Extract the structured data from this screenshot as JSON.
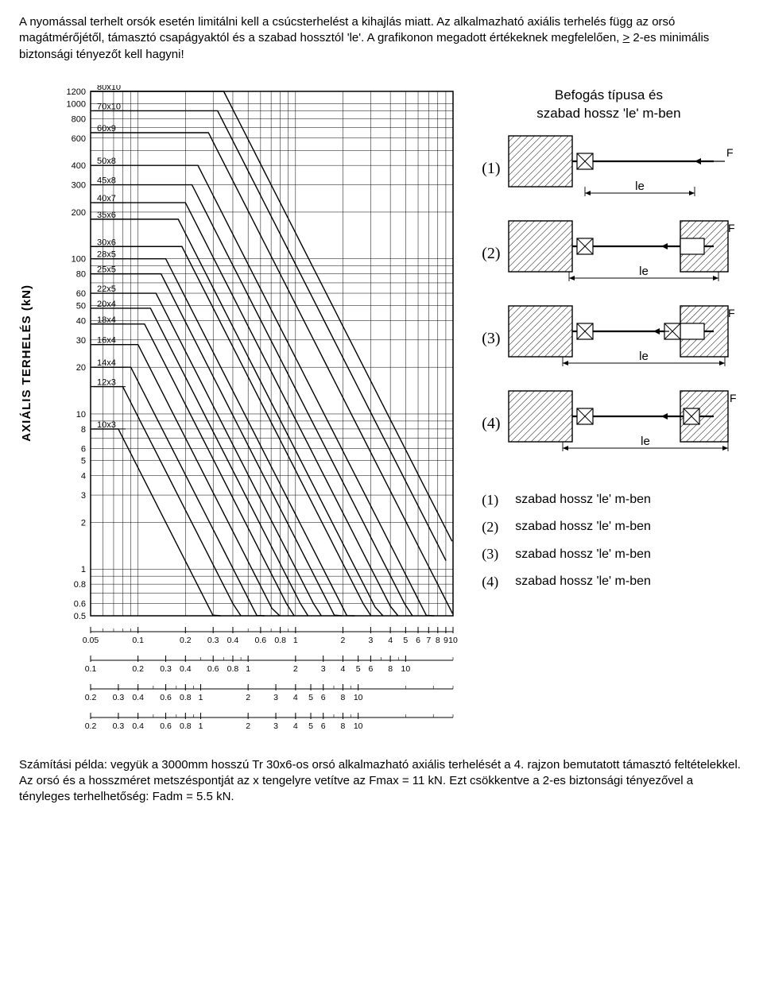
{
  "intro": {
    "p1a": "A nyomással terhelt orsók esetén limitálni kell a csúcsterhelést a kihajlás miatt. Az alkalmazható axiális terhelés függ az orsó magátmérőjétől, támasztó csapágyaktól és a szabad hossztól 'le'. A grafikonon megadott értékeknek megfelelően, ",
    "p1u": ">",
    "p1b": " 2-es minimális biztonsági tényezőt kell hagyni!"
  },
  "chart": {
    "y_label": "AXIÁLIS TERHELÉS (kN)",
    "y_ticks": [
      "1200",
      "1000",
      "800",
      "600",
      "400",
      "300",
      "200",
      "100",
      "80",
      "60",
      "50",
      "40",
      "30",
      "20",
      "10",
      "8",
      "6",
      "5",
      "4",
      "3",
      "2",
      "1",
      "0.8",
      "0.6",
      "0.5"
    ],
    "series_labels": [
      "80x10",
      "70x10",
      "60x9",
      "50x8",
      "45x8",
      "40x7",
      "35x6",
      "30x6",
      "28x5",
      "25x5",
      "22x5",
      "20x4",
      "18x4",
      "16x4",
      "14x4",
      "12x3",
      "10x3"
    ],
    "x_scales": [
      {
        "ticks": [
          "0.05",
          "0.1",
          "0.2",
          "0.3",
          "0.4",
          "0.6",
          "0.8",
          "1",
          "2",
          "3",
          "4",
          "5",
          "6",
          "7",
          "8",
          "9",
          "10"
        ]
      },
      {
        "ticks": [
          "0.1",
          "0.2",
          "0.3",
          "0.4",
          "0.6",
          "0.8",
          "1",
          "2",
          "3",
          "4",
          "5",
          "6",
          "8",
          "10"
        ]
      },
      {
        "ticks": [
          "0.2",
          "0.3",
          "0.4",
          "0.6",
          "0.8",
          "1",
          "2",
          "3",
          "4",
          "5",
          "6",
          "8",
          "10"
        ]
      },
      {
        "ticks": [
          "0.2",
          "0.3",
          "0.4",
          "0.6",
          "0.8",
          "1",
          "2",
          "3",
          "4",
          "5",
          "6",
          "8",
          "10"
        ]
      }
    ],
    "colors": {
      "stroke": "#000000",
      "grid": "#000000",
      "bg": "#ffffff",
      "hatch": "#000000"
    }
  },
  "supports": {
    "title_l1": "Befogás típusa és",
    "title_l2": "szabad hossz 'le' m-ben",
    "items": [
      {
        "num": "(1)",
        "le": "le",
        "f": "F"
      },
      {
        "num": "(2)",
        "le": "le",
        "f": "F"
      },
      {
        "num": "(3)",
        "le": "le",
        "f": "F"
      },
      {
        "num": "(4)",
        "le": "le",
        "f": "F"
      }
    ]
  },
  "legend": {
    "items": [
      {
        "num": "(1)",
        "text": "szabad hossz 'le' m-ben"
      },
      {
        "num": "(2)",
        "text": "szabad hossz 'le' m-ben"
      },
      {
        "num": "(3)",
        "text": "szabad hossz 'le' m-ben"
      },
      {
        "num": "(4)",
        "text": "szabad hossz 'le' m-ben"
      }
    ]
  },
  "footer": {
    "text": "Számítási példa:  vegyük a 3000mm hosszú Tr 30x6-os orsó alkalmazható axiális terhelését a 4. rajzon bemutatott támasztó feltételekkel. Az orsó és a hosszméret metszéspontját az x tengelyre vetítve az Fmax = 11 kN. Ezt csökkentve a 2-es biztonsági tényezővel a tényleges terhelhetőség: Fadm = 5.5 kN."
  }
}
